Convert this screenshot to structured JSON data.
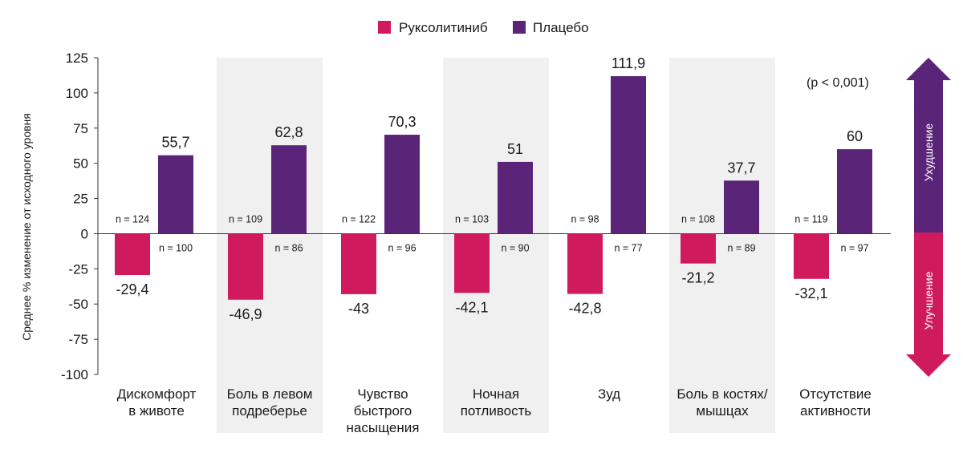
{
  "chart_data": {
    "type": "bar",
    "ylabel": "Среднее % изменение от исходного уровня",
    "ylim": [
      -100,
      125
    ],
    "yticks": [
      -100,
      -75,
      -50,
      -25,
      0,
      25,
      50,
      75,
      100,
      125
    ],
    "categories": [
      [
        "Дискомфорт",
        "в животе"
      ],
      [
        "Боль в левом",
        "подреберье"
      ],
      [
        "Чувство",
        "быстрого",
        "насыщения"
      ],
      [
        "Ночная",
        "потливость"
      ],
      [
        "Зуд"
      ],
      [
        "Боль в костях/",
        "мышцах"
      ],
      [
        "Отсутствие",
        "активности"
      ]
    ],
    "series": [
      {
        "name": "Руксолитиниб",
        "color": "#cf1b5e",
        "values": [
          -29.4,
          -46.9,
          -43,
          -42.1,
          -42.8,
          -21.2,
          -32.1
        ],
        "labels": [
          "-29,4",
          "-46,9",
          "-43",
          "-42,1",
          "-42,8",
          "-21,2",
          "-32,1"
        ],
        "n": [
          "n = 124",
          "n = 109",
          "n = 122",
          "n = 103",
          "n = 98",
          "n = 108",
          "n = 119"
        ]
      },
      {
        "name": "Плацебо",
        "color": "#5a2479",
        "values": [
          55.7,
          62.8,
          70.3,
          51,
          111.9,
          37.7,
          60
        ],
        "labels": [
          "55,7",
          "62,8",
          "70,3",
          "51",
          "111,9",
          "37,7",
          "60"
        ],
        "n": [
          "n = 100",
          "n = 86",
          "n = 96",
          "n = 90",
          "n = 77",
          "n = 89",
          "n = 97"
        ]
      }
    ],
    "shaded_categories": [
      1,
      3,
      5
    ],
    "annotation": "(p < 0,001)",
    "legend_placement": "top-center"
  },
  "arrow": {
    "up_label": "Ухудшение",
    "down_label": "Улучшение",
    "up_color": "#5a2479",
    "down_color": "#cf1b5e"
  }
}
